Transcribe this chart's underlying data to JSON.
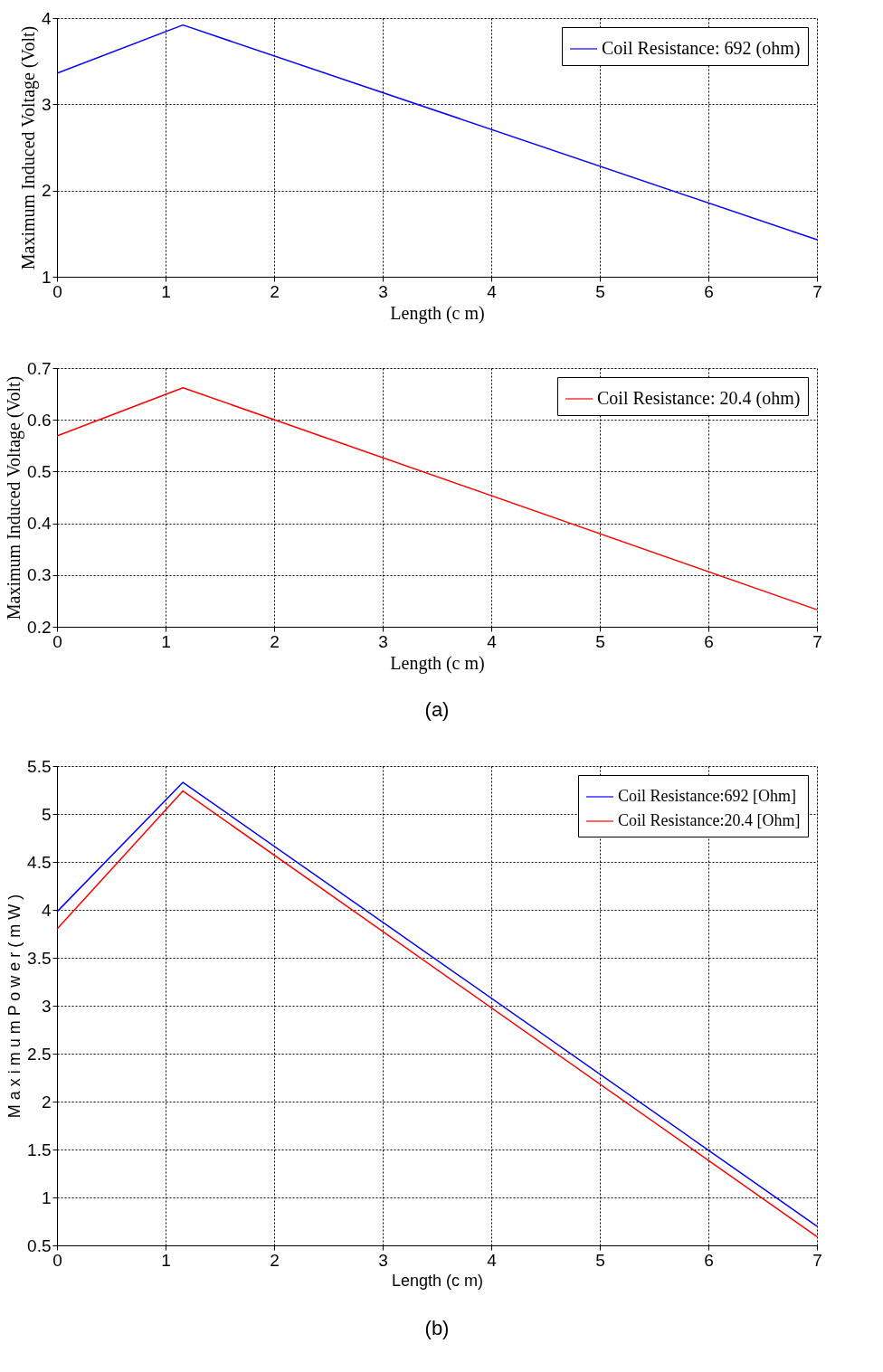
{
  "chart_data": [
    {
      "type": "line",
      "xlabel": "Length (c m)",
      "ylabel": "Maximum Induced Voltage (Volt)",
      "x": [
        0,
        1.16,
        7
      ],
      "xlim": [
        0,
        7
      ],
      "xticks": [
        0,
        1,
        2,
        3,
        4,
        5,
        6,
        7
      ],
      "ylim": [
        1,
        4
      ],
      "yticks": [
        1,
        2,
        3,
        4
      ],
      "grid": true,
      "legend": "top right",
      "series": [
        {
          "name": "Coil Resistance: 692 (ohm)",
          "color": "#0000ff",
          "values": [
            3.36,
            3.92,
            1.43
          ]
        }
      ]
    },
    {
      "type": "line",
      "xlabel": "Length (c m)",
      "ylabel": "Maximum Induced Voltage (Volt)",
      "x": [
        0,
        1.16,
        7
      ],
      "xlim": [
        0,
        7
      ],
      "xticks": [
        0,
        1,
        2,
        3,
        4,
        5,
        6,
        7
      ],
      "ylim": [
        0.2,
        0.7
      ],
      "yticks": [
        0.2,
        0.3,
        0.4,
        0.5,
        0.6,
        0.7
      ],
      "grid": true,
      "legend": "top right",
      "annotations": [
        "(a)"
      ],
      "series": [
        {
          "name": "Coil Resistance: 20.4 (ohm)",
          "color": "#ff0000",
          "values": [
            0.569,
            0.662,
            0.233
          ]
        }
      ]
    },
    {
      "type": "line",
      "xlabel": "Length (c m)",
      "ylabel": "M a x i m u m P o w e r ( m W )",
      "x": [
        0,
        1.16,
        7
      ],
      "xlim": [
        0,
        7
      ],
      "xticks": [
        0,
        1,
        2,
        3,
        4,
        5,
        6,
        7
      ],
      "ylim": [
        0.5,
        5.5
      ],
      "yticks": [
        0.5,
        1,
        1.5,
        2,
        2.5,
        3,
        3.5,
        4,
        4.5,
        5,
        5.5
      ],
      "grid": true,
      "legend": "top right",
      "annotations": [
        "(b)"
      ],
      "series": [
        {
          "name": "Coil Resistance:692 [Ohm]",
          "color": "#0000ff",
          "values": [
            3.98,
            5.33,
            0.7
          ]
        },
        {
          "name": "Coil Resistance:20.4 [Ohm]",
          "color": "#ff0000",
          "values": [
            3.8,
            5.24,
            0.59
          ]
        }
      ]
    }
  ]
}
